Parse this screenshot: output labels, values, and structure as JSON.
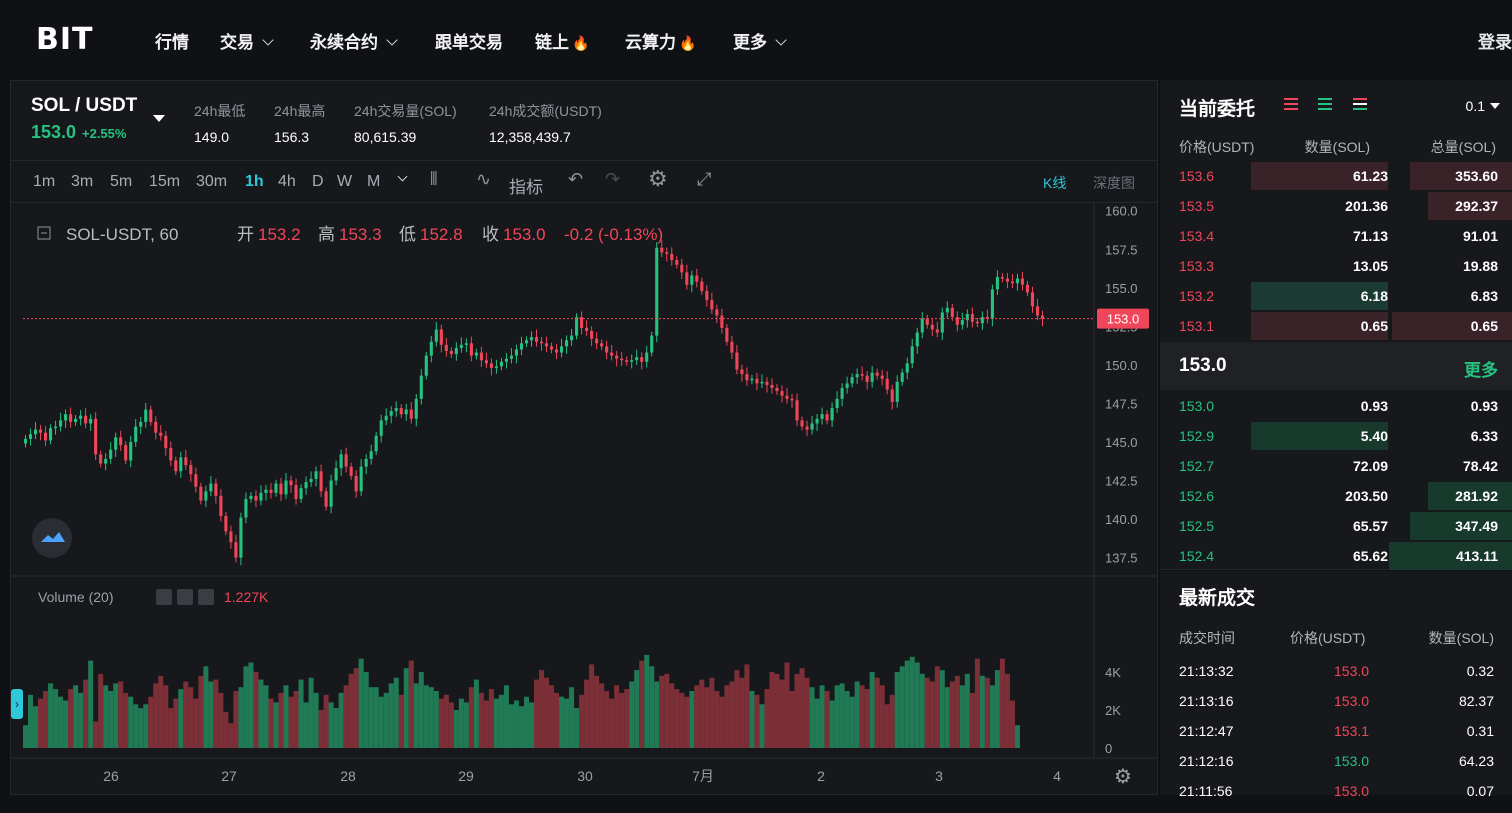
{
  "nav": {
    "logo": "BIT",
    "items": [
      {
        "label": "行情",
        "chevron": false,
        "fire": false
      },
      {
        "label": "交易",
        "chevron": true,
        "fire": false
      },
      {
        "label": "永续合约",
        "chevron": true,
        "fire": false
      },
      {
        "label": "跟单交易",
        "chevron": false,
        "fire": false
      },
      {
        "label": "链上",
        "chevron": false,
        "fire": true
      },
      {
        "label": "云算力",
        "chevron": false,
        "fire": true
      },
      {
        "label": "更多",
        "chevron": true,
        "fire": false
      }
    ],
    "login": "登录"
  },
  "ticker": {
    "pair": "SOL / USDT",
    "last_price": "153.0",
    "change_pct": "+2.55%",
    "stats": [
      {
        "label": "24h最低",
        "value": "149.0"
      },
      {
        "label": "24h最高",
        "value": "156.3"
      },
      {
        "label": "24h交易量(SOL)",
        "value": "80,615.39"
      },
      {
        "label": "24h成交额(USDT)",
        "value": "12,358,439.7"
      }
    ]
  },
  "toolbar": {
    "timeframes": [
      "1m",
      "3m",
      "5m",
      "15m",
      "30m",
      "1h",
      "4h",
      "D",
      "W",
      "M"
    ],
    "active_timeframe": "1h",
    "indicator_label": "指标",
    "kline_tab": "K线",
    "depth_tab": "深度图"
  },
  "legend": {
    "symbol": "SOL-USDT, 60",
    "open_label": "开",
    "open": "153.2",
    "high_label": "高",
    "high": "153.3",
    "low_label": "低",
    "low": "152.8",
    "close_label": "收",
    "close": "153.0",
    "change": "-0.2 (-0.13%)",
    "volume_label": "Volume (20)",
    "volume_value": "1.227K"
  },
  "chart_data": {
    "type": "candlestick",
    "y_ticks": [
      "160.0",
      "157.5",
      "155.0",
      "152.5",
      "150.0",
      "147.5",
      "145.0",
      "142.5",
      "140.0",
      "137.5"
    ],
    "ylim": [
      136.5,
      160.5
    ],
    "volume_ticks": [
      "4K",
      "2K",
      "0"
    ],
    "volume_ylim": [
      0,
      5000
    ],
    "x_ticks": [
      "26",
      "27",
      "28",
      "29",
      "30",
      "7月",
      "2",
      "3",
      "4"
    ],
    "current_price_label": "153.0",
    "closes": [
      145.2,
      145.5,
      145.8,
      145.6,
      145.1,
      145.9,
      146.0,
      146.4,
      146.8,
      146.3,
      146.5,
      146.7,
      146.2,
      146.5,
      144.2,
      143.6,
      143.9,
      144.5,
      145.3,
      144.8,
      143.8,
      145.0,
      146.0,
      146.3,
      147.1,
      146.3,
      145.6,
      145.4,
      144.6,
      143.8,
      143.1,
      144.0,
      143.5,
      142.9,
      142.1,
      141.2,
      141.8,
      142.3,
      141.5,
      140.2,
      139.2,
      138.5,
      137.5,
      140.1,
      141.3,
      141.5,
      141.2,
      141.7,
      141.9,
      141.7,
      142.3,
      141.6,
      142.5,
      142.2,
      141.3,
      142.0,
      142.4,
      142.6,
      143.1,
      141.8,
      140.8,
      142.5,
      143.3,
      144.2,
      143.4,
      142.8,
      141.8,
      143.4,
      143.9,
      144.4,
      145.4,
      146.4,
      146.7,
      147.0,
      147.2,
      146.8,
      147.1,
      146.5,
      147.8,
      149.3,
      150.6,
      151.5,
      152.3,
      151.3,
      150.9,
      150.7,
      151.1,
      151.3,
      151.4,
      150.6,
      150.8,
      150.3,
      150.1,
      149.8,
      149.9,
      150.2,
      150.4,
      150.6,
      151.0,
      151.4,
      151.6,
      151.8,
      151.5,
      151.4,
      151.2,
      151.0,
      150.8,
      151.2,
      151.6,
      151.9,
      153.1,
      152.4,
      152.2,
      151.7,
      151.4,
      151.2,
      150.8,
      150.6,
      150.4,
      150.3,
      150.2,
      150.3,
      150.5,
      150.2,
      150.8,
      151.9,
      157.6,
      157.3,
      157.2,
      156.8,
      156.5,
      156.0,
      155.2,
      155.8,
      155.4,
      154.8,
      154.2,
      153.6,
      153.2,
      152.4,
      151.5,
      150.8,
      149.7,
      149.4,
      149.0,
      149.1,
      148.8,
      148.9,
      148.7,
      148.5,
      148.3,
      148.0,
      147.8,
      147.7,
      146.4,
      146.0,
      145.8,
      146.2,
      146.5,
      146.8,
      146.4,
      147.2,
      147.8,
      148.5,
      148.8,
      149.2,
      149.4,
      149.3,
      148.9,
      149.5,
      149.3,
      149.1,
      148.4,
      147.6,
      148.9,
      149.5,
      150.1,
      151.2,
      152.1,
      153.0,
      152.6,
      152.3,
      152.1,
      153.4,
      153.7,
      153.1,
      152.6,
      152.9,
      153.3,
      152.8,
      152.7,
      153.1,
      153.0,
      154.9,
      155.7,
      155.6,
      155.4,
      155.3,
      155.6,
      155.2,
      154.7,
      153.8,
      153.2,
      153.0
    ],
    "volumes": [
      1200,
      2800,
      2200,
      2600,
      3000,
      3400,
      3100,
      2700,
      2500,
      3100,
      3300,
      2900,
      3600,
      4600,
      1400,
      3900,
      3300,
      3000,
      3400,
      3500,
      2900,
      2700,
      2300,
      2100,
      2300,
      2700,
      3400,
      3800,
      3300,
      2100,
      2600,
      3100,
      3500,
      3200,
      2600,
      3800,
      4300,
      3500,
      3600,
      2900,
      1900,
      1300,
      3000,
      3200,
      4300,
      4500,
      4000,
      3600,
      3300,
      2600,
      2400,
      2900,
      3300,
      2700,
      3000,
      3600,
      2400,
      3700,
      2900,
      2000,
      2800,
      2400,
      2100,
      2900,
      3300,
      3900,
      4200,
      4700,
      4000,
      3200,
      3200,
      2700,
      2900,
      3400,
      3700,
      2800,
      4200,
      4600,
      3400,
      4000,
      3300,
      3200,
      3000,
      2600,
      2800,
      2400,
      2000,
      2600,
      2400,
      3200,
      3600,
      2900,
      2500,
      3100,
      2600,
      2800,
      3300,
      2300,
      2500,
      2200,
      2700,
      2400,
      3600,
      4100,
      3700,
      3300,
      2900,
      2700,
      2600,
      3200,
      2100,
      2800,
      3600,
      4400,
      3800,
      3400,
      3000,
      2600,
      3300,
      2900,
      3100,
      3500,
      4100,
      4600,
      4900,
      4300,
      3500,
      3800,
      3900,
      3400,
      3100,
      2900,
      2700,
      3000,
      3300,
      3600,
      3200,
      3700,
      3000,
      2700,
      3300,
      3500,
      4100,
      3700,
      4400,
      3000,
      2800,
      2300,
      3100,
      4000,
      3900,
      3600,
      4500,
      3000,
      3900,
      4200,
      3700,
      3200,
      2600,
      3300,
      3000,
      2500,
      3300,
      3400,
      3000,
      2700,
      3500,
      3300,
      3100,
      4000,
      3700,
      3300,
      2300,
      2800,
      4000,
      4300,
      4600,
      4800,
      4500,
      3900,
      3700,
      3500,
      4300,
      4100,
      3200,
      3500,
      3800,
      3300,
      3900,
      2900,
      4700,
      3800,
      3700,
      3300,
      4100,
      4700,
      3900,
      2500,
      1200
    ],
    "volume_colors": {
      "up": "#1f7a55",
      "down": "#7d2f37"
    }
  },
  "order_book": {
    "title": "当前委托",
    "precision": "0.1",
    "headers": [
      "价格(USDT)",
      "数量(SOL)",
      "总量(SOL)"
    ],
    "asks": [
      {
        "price": "153.6",
        "qty": "61.23",
        "total": "353.60",
        "qty_bar": 0.39,
        "total_bar": 0.29
      },
      {
        "price": "153.5",
        "qty": "201.36",
        "total": "292.37",
        "qty_bar": 0,
        "total_bar": 0.24
      },
      {
        "price": "153.4",
        "qty": "71.13",
        "total": "91.01",
        "qty_bar": 0,
        "total_bar": 0
      },
      {
        "price": "153.3",
        "qty": "13.05",
        "total": "19.88",
        "qty_bar": 0,
        "total_bar": 0
      },
      {
        "price": "153.2",
        "qty": "6.18",
        "total": "6.83",
        "qty_bar": 0.39,
        "total_bar": 0,
        "highlight": true
      },
      {
        "price": "153.1",
        "qty": "0.65",
        "total": "0.65",
        "qty_bar": 0.39,
        "total_bar": 0.34
      }
    ],
    "mid_price": "153.0",
    "more": "更多",
    "bids": [
      {
        "price": "153.0",
        "qty": "0.93",
        "total": "0.93",
        "qty_bar": 0,
        "total_bar": 0
      },
      {
        "price": "152.9",
        "qty": "5.40",
        "total": "6.33",
        "qty_bar": 0.39,
        "total_bar": 0
      },
      {
        "price": "152.7",
        "qty": "72.09",
        "total": "78.42",
        "qty_bar": 0,
        "total_bar": 0
      },
      {
        "price": "152.6",
        "qty": "203.50",
        "total": "281.92",
        "qty_bar": 0,
        "total_bar": 0.24
      },
      {
        "price": "152.5",
        "qty": "65.57",
        "total": "347.49",
        "qty_bar": 0,
        "total_bar": 0.29
      },
      {
        "price": "152.4",
        "qty": "65.62",
        "total": "413.11",
        "qty_bar": 0,
        "total_bar": 0.35
      }
    ]
  },
  "trades": {
    "title": "最新成交",
    "headers": [
      "成交时间",
      "价格(USDT)",
      "数量(SOL)"
    ],
    "rows": [
      {
        "time": "21:13:32",
        "price": "153.0",
        "qty": "0.32",
        "side": "sell"
      },
      {
        "time": "21:13:16",
        "price": "153.0",
        "qty": "82.37",
        "side": "sell"
      },
      {
        "time": "21:12:47",
        "price": "153.1",
        "qty": "0.31",
        "side": "sell"
      },
      {
        "time": "21:12:16",
        "price": "153.0",
        "qty": "64.23",
        "side": "buy"
      },
      {
        "time": "21:11:56",
        "price": "153.0",
        "qty": "0.07",
        "side": "sell"
      }
    ]
  },
  "colors": {
    "up": "#26c281",
    "down": "#f0465a",
    "accent": "#2ec8d8"
  }
}
